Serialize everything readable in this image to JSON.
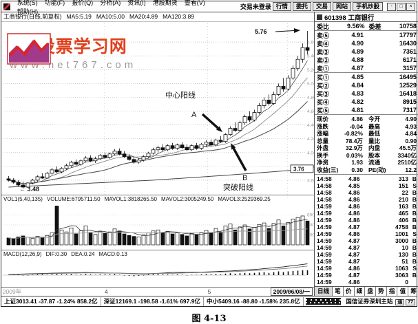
{
  "menu": {
    "items": [
      "系统(S)",
      "功能(F)",
      "报价(Q)",
      "分析(A)",
      "资讯(I)",
      "港股期货",
      "查看(V)",
      "帮助(H)"
    ],
    "login_status": "交易未登录",
    "right_buttons": [
      "行情",
      "委托",
      "交易",
      "网站",
      "手机炒股"
    ],
    "window_controls": [
      "-",
      "□",
      "×"
    ]
  },
  "chart": {
    "header_parts": [
      "工商银行(日线,前复权)",
      "MA5:5.19",
      "MA10:5.00",
      "MA20:4.89",
      "MA120:3.89"
    ]
  },
  "watermark": {
    "title": "767股票学习网",
    "url": "www.net767.com"
  },
  "annotations": {
    "center_yang": "中心阳线",
    "a": "A",
    "b": "B",
    "break_yang": "突破阳线",
    "high": "5.76",
    "low": "← 3.48",
    "ma120_value": "3.76"
  },
  "vol_header_parts": [
    "VOL1(5,40,135)",
    "VOLUME:6795711.50",
    "MAVOL1:3818265.50",
    "MAVOL2:3005249.50",
    "MAVOL3:2529369.25"
  ],
  "macd_header_parts": [
    "MACD(12,26,9)",
    "DIF:0.30",
    "DEA:0.24",
    "MACD:0.13"
  ],
  "chart_data": {
    "type": "candlestick",
    "symbol": "601398 工商银行",
    "title": "工商银行(日线,前复权)",
    "price_axis": {
      "min": 3.4,
      "max": 5.85,
      "gridlines": [
        5.6,
        5.4,
        5.2,
        5.0,
        4.8,
        4.6,
        4.4,
        4.2,
        4.0,
        3.8,
        3.6
      ]
    },
    "x_labels": [
      {
        "label": "2009年",
        "pos": 0.004,
        "dim": true
      },
      {
        "label": "4",
        "pos": 0.33,
        "dim": false
      },
      {
        "label": "5",
        "pos": 0.66,
        "dim": false
      },
      {
        "label": "6",
        "pos": 0.915,
        "dim": false
      }
    ],
    "x_date": "2009/06/08/一",
    "candles": [
      [
        3.62,
        3.66,
        3.58,
        3.6
      ],
      [
        3.6,
        3.63,
        3.55,
        3.57
      ],
      [
        3.57,
        3.6,
        3.51,
        3.53
      ],
      [
        3.53,
        3.58,
        3.48,
        3.5
      ],
      [
        3.5,
        3.57,
        3.49,
        3.56
      ],
      [
        3.56,
        3.62,
        3.54,
        3.6
      ],
      [
        3.6,
        3.67,
        3.58,
        3.65
      ],
      [
        3.65,
        3.7,
        3.62,
        3.63
      ],
      [
        3.63,
        3.72,
        3.62,
        3.7
      ],
      [
        3.7,
        3.78,
        3.68,
        3.75
      ],
      [
        3.75,
        3.8,
        3.7,
        3.72
      ],
      [
        3.72,
        3.79,
        3.7,
        3.77
      ],
      [
        3.77,
        3.84,
        3.75,
        3.81
      ],
      [
        3.81,
        3.88,
        3.79,
        3.86
      ],
      [
        3.86,
        3.9,
        3.81,
        3.83
      ],
      [
        3.83,
        3.9,
        3.81,
        3.88
      ],
      [
        3.88,
        3.95,
        3.86,
        3.92
      ],
      [
        3.92,
        3.96,
        3.86,
        3.88
      ],
      [
        3.88,
        3.94,
        3.85,
        3.91
      ],
      [
        3.91,
        3.98,
        3.89,
        3.96
      ],
      [
        3.96,
        4.0,
        3.91,
        3.93
      ],
      [
        3.93,
        4.0,
        3.91,
        3.98
      ],
      [
        3.98,
        4.05,
        3.96,
        4.02
      ],
      [
        4.02,
        4.06,
        3.96,
        3.98
      ],
      [
        3.98,
        4.02,
        3.92,
        3.94
      ],
      [
        3.94,
        3.98,
        3.88,
        3.9
      ],
      [
        3.9,
        3.94,
        3.84,
        3.86
      ],
      [
        3.86,
        3.92,
        3.84,
        3.89
      ],
      [
        3.89,
        3.96,
        3.87,
        3.94
      ],
      [
        3.94,
        4.01,
        3.92,
        3.99
      ],
      [
        3.99,
        4.07,
        3.97,
        4.04
      ],
      [
        4.04,
        4.1,
        4.0,
        4.07
      ],
      [
        4.07,
        4.12,
        4.02,
        4.04
      ],
      [
        4.04,
        4.12,
        4.02,
        4.1
      ],
      [
        4.1,
        4.14,
        4.04,
        4.06
      ],
      [
        4.06,
        4.13,
        4.04,
        4.11
      ],
      [
        4.11,
        4.15,
        4.05,
        4.07
      ],
      [
        4.07,
        4.12,
        4.02,
        4.04
      ],
      [
        4.04,
        4.12,
        4.02,
        4.1
      ],
      [
        4.1,
        4.14,
        4.04,
        4.06
      ],
      [
        4.06,
        4.14,
        4.04,
        4.12
      ],
      [
        4.12,
        4.18,
        4.08,
        4.15
      ],
      [
        4.15,
        4.19,
        4.09,
        4.11
      ],
      [
        4.11,
        4.2,
        4.09,
        4.18
      ],
      [
        4.18,
        4.24,
        4.14,
        4.16
      ],
      [
        4.16,
        4.28,
        4.14,
        4.26
      ],
      [
        4.26,
        4.38,
        4.24,
        4.35
      ],
      [
        4.35,
        4.44,
        4.3,
        4.32
      ],
      [
        4.32,
        4.46,
        4.3,
        4.43
      ],
      [
        4.43,
        4.55,
        4.4,
        4.52
      ],
      [
        4.52,
        4.6,
        4.44,
        4.47
      ],
      [
        4.47,
        4.62,
        4.45,
        4.58
      ],
      [
        4.58,
        4.72,
        4.55,
        4.68
      ],
      [
        4.68,
        4.8,
        4.64,
        4.76
      ],
      [
        4.76,
        4.84,
        4.68,
        4.71
      ],
      [
        4.71,
        4.88,
        4.69,
        4.84
      ],
      [
        4.84,
        5.0,
        4.82,
        4.96
      ],
      [
        4.96,
        5.08,
        4.88,
        4.92
      ],
      [
        4.92,
        5.12,
        4.9,
        5.08
      ],
      [
        5.08,
        5.26,
        5.05,
        5.22
      ],
      [
        5.22,
        5.4,
        5.18,
        5.35
      ],
      [
        5.35,
        5.58,
        5.3,
        5.52
      ],
      [
        5.52,
        5.76,
        5.42,
        5.48
      ]
    ],
    "ma120_points": [
      [
        0,
        3.5
      ],
      [
        15,
        3.55
      ],
      [
        30,
        3.6
      ],
      [
        45,
        3.67
      ],
      [
        62,
        3.76
      ]
    ],
    "volumes": [
      14000,
      12000,
      16000,
      18000,
      15000,
      13000,
      17000,
      14000,
      19000,
      24000,
      78000,
      30000,
      26000,
      34000,
      22000,
      28000,
      38000,
      25000,
      21000,
      27000,
      23000,
      26000,
      32000,
      28000,
      22000,
      19000,
      17000,
      16000,
      20000,
      24000,
      28000,
      30000,
      24000,
      27000,
      22000,
      25000,
      21000,
      18000,
      23000,
      20000,
      25000,
      29000,
      24000,
      33000,
      26000,
      38000,
      42000,
      30000,
      36000,
      40000,
      32000,
      35000,
      41000,
      44000,
      33000,
      43000,
      50000,
      38000,
      45000,
      52000,
      55000,
      58000,
      48000
    ],
    "vol_axis": [
      60000,
      40000,
      20000
    ],
    "macd_hist": [
      0.01,
      0.02,
      0.01,
      0.0,
      -0.01,
      0.01,
      0.02,
      0.02,
      0.01,
      0.02,
      0.03,
      0.02,
      0.02,
      0.03,
      0.01,
      0.02,
      0.03,
      0.02,
      0.01,
      0.02,
      0.02,
      0.02,
      0.03,
      0.01,
      -0.01,
      -0.02,
      -0.03,
      -0.02,
      0.0,
      0.02,
      0.03,
      0.03,
      0.02,
      0.02,
      0.01,
      0.02,
      0.01,
      0.0,
      0.01,
      0.01,
      0.02,
      0.03,
      0.02,
      0.03,
      0.02,
      0.04,
      0.05,
      0.04,
      0.05,
      0.06,
      0.05,
      0.06,
      0.07,
      0.08,
      0.06,
      0.08,
      0.1,
      0.08,
      0.1,
      0.11,
      0.12,
      0.13,
      0.13
    ],
    "dif_points": [
      [
        0,
        0.02
      ],
      [
        8,
        0.05
      ],
      [
        16,
        0.07
      ],
      [
        24,
        0.05
      ],
      [
        28,
        0.03
      ],
      [
        34,
        0.07
      ],
      [
        40,
        0.08
      ],
      [
        46,
        0.11
      ],
      [
        52,
        0.16
      ],
      [
        57,
        0.22
      ],
      [
        62,
        0.3
      ]
    ],
    "dea_points": [
      [
        0,
        0.01
      ],
      [
        8,
        0.04
      ],
      [
        16,
        0.06
      ],
      [
        24,
        0.05
      ],
      [
        28,
        0.04
      ],
      [
        34,
        0.05
      ],
      [
        40,
        0.07
      ],
      [
        46,
        0.09
      ],
      [
        52,
        0.13
      ],
      [
        57,
        0.17
      ],
      [
        62,
        0.24
      ]
    ]
  },
  "quote": {
    "title": "601398 工商银行",
    "ratio": {
      "l1": "委比",
      "v1": "9.56%",
      "l2": "委差",
      "v2": "10758"
    },
    "sells": [
      [
        "卖⑤",
        "4.91",
        "17797"
      ],
      [
        "卖④",
        "4.90",
        "16430"
      ],
      [
        "卖③",
        "4.89",
        "7361"
      ],
      [
        "卖②",
        "4.88",
        "6171"
      ],
      [
        "卖①",
        "4.87",
        "3157"
      ]
    ],
    "buys": [
      [
        "买①",
        "4.85",
        "16495"
      ],
      [
        "买②",
        "4.84",
        "12529"
      ],
      [
        "买③",
        "4.83",
        "16418"
      ],
      [
        "买④",
        "4.82",
        "8915"
      ],
      [
        "买⑤",
        "4.81",
        "7317"
      ]
    ],
    "info": [
      [
        "现价",
        "4.86",
        "今开",
        "4.90"
      ],
      [
        "涨跌",
        "-0.04",
        "最高",
        "4.93"
      ],
      [
        "涨幅",
        "-0.82%",
        "最低",
        "4.84"
      ],
      [
        "总量",
        "78.4万",
        "量比",
        "0.90"
      ],
      [
        "外盘",
        "32.9万",
        "内盘",
        "45.5万"
      ],
      [
        "换手",
        "0.03%",
        "股本",
        "3340亿"
      ],
      [
        "净资",
        "1.93",
        "流通",
        "2510亿"
      ],
      [
        "收益(三)",
        "0.30",
        "PE(动)",
        "12.2"
      ]
    ],
    "trades": [
      [
        "14:58",
        "4.86",
        "313",
        "B"
      ],
      [
        "14:58",
        "4.85",
        "151",
        "S"
      ],
      [
        "14:58",
        "4.86",
        "22",
        "B"
      ],
      [
        "14:58",
        "4.86",
        "210",
        "B"
      ],
      [
        "14:59",
        "4.86",
        "163",
        "B"
      ],
      [
        "14:59",
        "4.86",
        "465",
        "B"
      ],
      [
        "14:59",
        "4.86",
        "406",
        "B"
      ],
      [
        "14:59",
        "4.87",
        "4758",
        "B"
      ],
      [
        "14:59",
        "4.86",
        "1001",
        "S"
      ],
      [
        "14:59",
        "4.87",
        "3000",
        "B"
      ],
      [
        "14:59",
        "4.87",
        "10",
        "B"
      ],
      [
        "14:59",
        "4.87",
        "130",
        "B"
      ],
      [
        "14:59",
        "4.87",
        "51",
        "B"
      ],
      [
        "14:59",
        "4.86",
        "1063",
        "S"
      ],
      [
        "14:59",
        "4.87",
        "3063",
        "B"
      ],
      [
        "14:59",
        "4.86",
        "0",
        ""
      ]
    ],
    "tabs": [
      "日线",
      "笔",
      "价",
      "细",
      "盘",
      "势",
      "指",
      "值",
      "筹"
    ]
  },
  "statusbar": {
    "indices": [
      {
        "name": "上证",
        "value": "3013.41",
        "change": "-37.87",
        "pct": "-1.24%",
        "amount": "858.2亿"
      },
      {
        "name": "深证",
        "value": "12169.1",
        "change": "-198.58",
        "pct": "-1.61%",
        "amount": "697.9亿"
      },
      {
        "name": "中小",
        "value": "5409.16",
        "change": "-88.80",
        "pct": "-1.58%",
        "amount": "235.8亿"
      }
    ],
    "server": "国信证券深圳主站",
    "icons": [
      "通",
      "77"
    ]
  },
  "caption": "图 4-13"
}
